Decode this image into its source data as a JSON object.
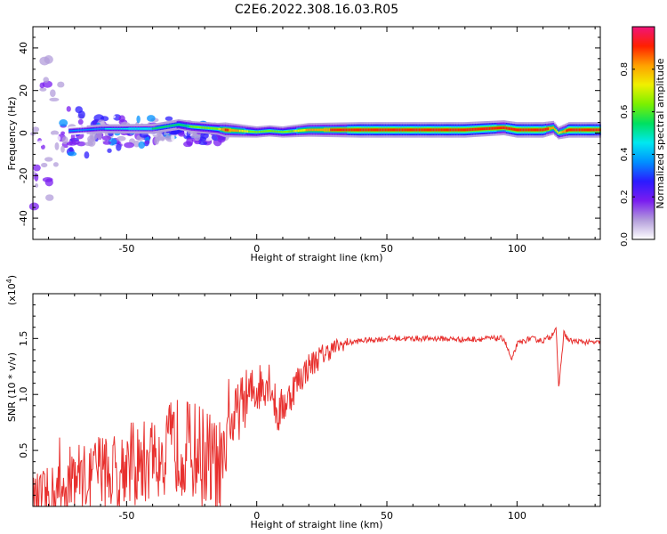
{
  "title": "C2E6.2022.308.16.03.R05",
  "chart_data": [
    {
      "type": "heatmap",
      "xlabel": "Height of straight line (km)",
      "ylabel": "Frequency (Hz)",
      "xlim": [
        -86,
        132
      ],
      "ylim": [
        -50,
        50
      ],
      "x_ticks": [
        -50,
        0,
        50,
        100
      ],
      "y_ticks": [
        -40,
        -20,
        0,
        20,
        40
      ],
      "colorbar": {
        "label": "Normalized spectral amplitude",
        "range": [
          0,
          1
        ],
        "ticks": [
          "0.0",
          "0.2",
          "0.4",
          "0.6",
          "0.8"
        ],
        "colors": [
          "#ffffff",
          "#b39ddb",
          "#7a1cf0",
          "#2b1bff",
          "#0090ff",
          "#00e8f0",
          "#00e060",
          "#7cf000",
          "#f0f000",
          "#ffa000",
          "#ff2000",
          "#f0147a"
        ]
      },
      "ridge": {
        "description_x": [
          -72,
          -60,
          -50,
          -40,
          -30,
          -25,
          -15,
          -12,
          0,
          5,
          10,
          20,
          40,
          60,
          80,
          95,
          100,
          110,
          114,
          116,
          120,
          132
        ],
        "freq_hz": [
          1,
          2,
          2,
          2,
          4,
          3,
          2,
          1.5,
          0.5,
          1,
          0.5,
          1.5,
          1.5,
          1.5,
          1.5,
          2.5,
          1.5,
          1.5,
          2.5,
          0,
          1.5,
          1.5
        ],
        "amplitude": [
          0.35,
          0.4,
          0.45,
          0.5,
          0.55,
          0.6,
          0.65,
          0.9,
          0.6,
          0.6,
          0.6,
          0.8,
          0.95,
          0.95,
          0.95,
          0.9,
          0.95,
          0.95,
          0.8,
          0.7,
          0.95,
          0.95
        ]
      },
      "noise_region": {
        "x_range": [
          -86,
          -12
        ],
        "note_color": "#7a1cf0"
      }
    },
    {
      "type": "line",
      "xlabel": "Height of straight line (km)",
      "ylabel": "SNR (10 * v/v)",
      "y_multiplier": "(x10",
      "y_multiplier_exp": "4",
      "y_multiplier_close": ")",
      "xlim": [
        -86,
        132
      ],
      "ylim": [
        0,
        1.9
      ],
      "x_ticks": [
        -50,
        0,
        50,
        100
      ],
      "y_ticks": [
        "0.5",
        "1.0",
        "1.5"
      ],
      "series": [
        {
          "color": "#e8312f",
          "x": [
            -86,
            -80,
            -75,
            -70,
            -65,
            -60,
            -55,
            -50,
            -45,
            -40,
            -35,
            -30,
            -25,
            -20,
            -15,
            -12,
            -11,
            -10,
            -5,
            0,
            5,
            8,
            10,
            12,
            15,
            20,
            25,
            30,
            35,
            40,
            50,
            60,
            70,
            80,
            90,
            95,
            98,
            100,
            105,
            110,
            113,
            115,
            116,
            118,
            120,
            125,
            132
          ],
          "y": [
            0.03,
            0.08,
            0.15,
            0.3,
            0.25,
            0.35,
            0.3,
            0.4,
            0.35,
            0.45,
            0.5,
            0.55,
            0.5,
            0.45,
            0.3,
            0.2,
            1.05,
            0.7,
            0.95,
            1.05,
            1.15,
            0.8,
            0.9,
            0.95,
            1.1,
            1.25,
            1.35,
            1.42,
            1.46,
            1.48,
            1.5,
            1.5,
            1.5,
            1.49,
            1.5,
            1.5,
            1.3,
            1.45,
            1.5,
            1.48,
            1.52,
            1.6,
            1.05,
            1.55,
            1.48,
            1.47,
            1.46
          ]
        }
      ]
    }
  ]
}
